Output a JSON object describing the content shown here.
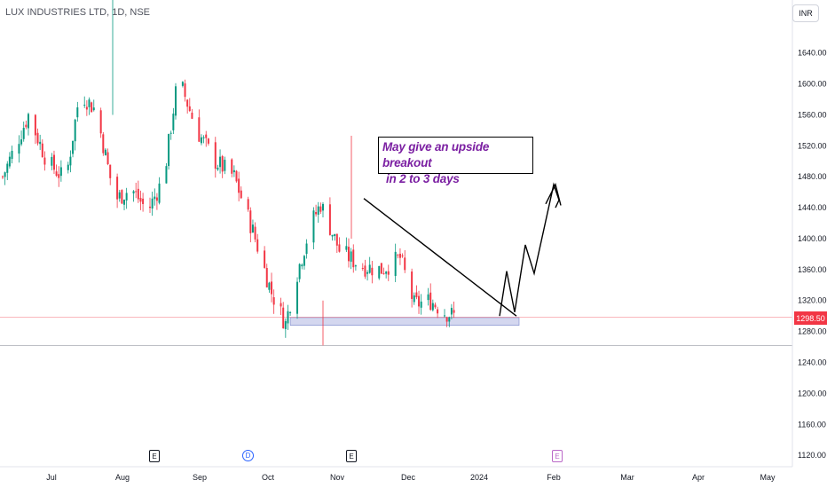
{
  "title": "LUX INDUSTRIES LTD, 1D, NSE",
  "currency": "INR",
  "last_price": "1298.50",
  "annotation": {
    "line1": "May give an upside breakout",
    "line2": "in 2 to 3 days"
  },
  "colors": {
    "up": "#089981",
    "down": "#f23645",
    "support_zone": "#c5cae9",
    "annotation_text": "#7b1fa2",
    "price_line": "#f23645"
  },
  "events": [
    {
      "label": "E",
      "type": "earnings",
      "date": "Aug"
    },
    {
      "label": "D",
      "type": "dividend",
      "date": "Sep/Oct"
    },
    {
      "label": "E",
      "type": "earnings",
      "date": "Nov"
    },
    {
      "label": "E",
      "type": "earnings-upcoming",
      "date": "Feb"
    }
  ],
  "chart_data": {
    "type": "candlestick",
    "title": "LUX INDUSTRIES LTD, 1D, NSE",
    "x_ticks": [
      "Jul",
      "Aug",
      "Sep",
      "Oct",
      "Nov",
      "Dec",
      "2024",
      "Feb",
      "Mar",
      "Apr",
      "May"
    ],
    "y_ticks": [
      "1640.00",
      "1600.00",
      "1560.00",
      "1520.00",
      "1480.00",
      "1440.00",
      "1400.00",
      "1360.00",
      "1320.00",
      "1280.00",
      "1240.00",
      "1200.00",
      "1160.00",
      "1120.00"
    ],
    "ylim": [
      1112,
      1665
    ],
    "last_price": 1298.5,
    "close_path": [
      {
        "date": "Jul 1",
        "close": 1480
      },
      {
        "date": "Jul 12",
        "close": 1560
      },
      {
        "date": "Jul 20",
        "close": 1500
      },
      {
        "date": "Jul 28",
        "close": 1475
      },
      {
        "date": "Aug 3",
        "close": 1590
      },
      {
        "date": "Aug 10",
        "close": 1565
      },
      {
        "date": "Aug 18",
        "close": 1450
      },
      {
        "date": "Aug 25",
        "close": 1465
      },
      {
        "date": "Sep 1",
        "close": 1435
      },
      {
        "date": "Sep 8",
        "close": 1480
      },
      {
        "date": "Sep 14",
        "close": 1610
      },
      {
        "date": "Sep 22",
        "close": 1540
      },
      {
        "date": "Sep 30",
        "close": 1500
      },
      {
        "date": "Oct 8",
        "close": 1480
      },
      {
        "date": "Oct 16",
        "close": 1410
      },
      {
        "date": "Oct 24",
        "close": 1330
      },
      {
        "date": "Oct 30",
        "close": 1290
      },
      {
        "date": "Nov 3",
        "close": 1345
      },
      {
        "date": "Nov 10",
        "close": 1420
      },
      {
        "date": "Nov 14",
        "close": 1445
      },
      {
        "date": "Nov 22",
        "close": 1385
      },
      {
        "date": "Dec 1",
        "close": 1365
      },
      {
        "date": "Dec 10",
        "close": 1360
      },
      {
        "date": "Dec 18",
        "close": 1375
      },
      {
        "date": "Dec 24",
        "close": 1315
      },
      {
        "date": "Dec 31",
        "close": 1320
      },
      {
        "date": "Jan 6",
        "close": 1305
      },
      {
        "date": "Jan 12",
        "close": 1298.5
      }
    ],
    "support_zone": [
      1288,
      1298
    ],
    "trendline": [
      {
        "date": "Nov 14",
        "price": 1452
      },
      {
        "date": "Jan 20",
        "price": 1300
      }
    ],
    "projection": [
      1300,
      1358,
      1305,
      1392,
      1355,
      1470,
      1450,
      1440
    ]
  }
}
